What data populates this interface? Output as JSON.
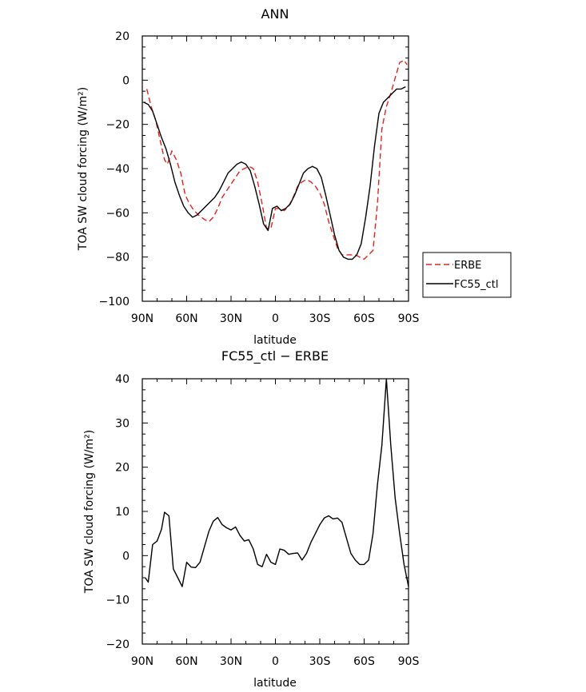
{
  "chart_data": [
    {
      "type": "line",
      "title": "ANN",
      "xlabel": "latitude",
      "ylabel": "TOA SW cloud forcing (W/m²)",
      "xticks": [
        "90N",
        "60N",
        "30N",
        "0",
        "30S",
        "60S",
        "90S"
      ],
      "xlim": [
        90,
        -90
      ],
      "ylim": [
        -100,
        20
      ],
      "yticks": [
        "20",
        "0",
        "−20",
        "−40",
        "−60",
        "−80",
        "−100"
      ],
      "legend_position": "right",
      "series": [
        {
          "name": "ERBE",
          "color": "#e8201c",
          "style": "dashed",
          "points": [
            [
              87,
              -4
            ],
            [
              84,
              -12
            ],
            [
              81,
              -18
            ],
            [
              78,
              -27
            ],
            [
              75,
              -36
            ],
            [
              73,
              -38
            ],
            [
              70,
              -32
            ],
            [
              67,
              -36
            ],
            [
              64,
              -42
            ],
            [
              61,
              -52
            ],
            [
              58,
              -56
            ],
            [
              55,
              -59
            ],
            [
              52,
              -61
            ],
            [
              48,
              -63
            ],
            [
              45,
              -64
            ],
            [
              42,
              -62
            ],
            [
              39,
              -58
            ],
            [
              36,
              -53
            ],
            [
              33,
              -50
            ],
            [
              30,
              -47
            ],
            [
              27,
              -44
            ],
            [
              24,
              -41
            ],
            [
              21,
              -40
            ],
            [
              18,
              -39
            ],
            [
              15,
              -40
            ],
            [
              12,
              -46
            ],
            [
              9,
              -56
            ],
            [
              6,
              -67
            ],
            [
              3,
              -67
            ],
            [
              0,
              -58
            ],
            [
              -3,
              -58
            ],
            [
              -6,
              -59
            ],
            [
              -9,
              -57
            ],
            [
              -12,
              -53
            ],
            [
              -15,
              -48
            ],
            [
              -18,
              -46
            ],
            [
              -21,
              -45
            ],
            [
              -24,
              -46
            ],
            [
              -27,
              -48
            ],
            [
              -30,
              -51
            ],
            [
              -33,
              -56
            ],
            [
              -36,
              -64
            ],
            [
              -39,
              -70
            ],
            [
              -42,
              -76
            ],
            [
              -45,
              -79
            ],
            [
              -48,
              -79
            ],
            [
              -51,
              -79
            ],
            [
              -54,
              -79
            ],
            [
              -57,
              -80
            ],
            [
              -60,
              -81
            ],
            [
              -63,
              -79
            ],
            [
              -66,
              -77
            ],
            [
              -69,
              -56
            ],
            [
              -72,
              -22
            ],
            [
              -75,
              -12
            ],
            [
              -78,
              -6
            ],
            [
              -81,
              1
            ],
            [
              -84,
              8
            ],
            [
              -87,
              9
            ],
            [
              -89,
              7
            ]
          ]
        },
        {
          "name": "FC55_ctl",
          "color": "#000000",
          "style": "solid",
          "points": [
            [
              89,
              -10
            ],
            [
              86,
              -11
            ],
            [
              83,
              -14
            ],
            [
              80,
              -20
            ],
            [
              77,
              -26
            ],
            [
              74,
              -31
            ],
            [
              71,
              -38
            ],
            [
              68,
              -46
            ],
            [
              65,
              -52
            ],
            [
              62,
              -57
            ],
            [
              59,
              -60
            ],
            [
              56,
              -62
            ],
            [
              53,
              -61
            ],
            [
              50,
              -59
            ],
            [
              47,
              -57
            ],
            [
              44,
              -55
            ],
            [
              41,
              -53
            ],
            [
              38,
              -50
            ],
            [
              35,
              -46
            ],
            [
              32,
              -42
            ],
            [
              29,
              -40
            ],
            [
              26,
              -38
            ],
            [
              23,
              -37
            ],
            [
              20,
              -38
            ],
            [
              17,
              -41
            ],
            [
              14,
              -48
            ],
            [
              11,
              -56
            ],
            [
              8,
              -65
            ],
            [
              5,
              -68
            ],
            [
              2,
              -58
            ],
            [
              -1,
              -57
            ],
            [
              -4,
              -59
            ],
            [
              -7,
              -58
            ],
            [
              -10,
              -56
            ],
            [
              -13,
              -52
            ],
            [
              -16,
              -47
            ],
            [
              -19,
              -42
            ],
            [
              -22,
              -40
            ],
            [
              -25,
              -39
            ],
            [
              -28,
              -40
            ],
            [
              -31,
              -44
            ],
            [
              -34,
              -52
            ],
            [
              -37,
              -61
            ],
            [
              -40,
              -70
            ],
            [
              -43,
              -77
            ],
            [
              -46,
              -80
            ],
            [
              -49,
              -81
            ],
            [
              -52,
              -81
            ],
            [
              -55,
              -79
            ],
            [
              -58,
              -74
            ],
            [
              -61,
              -62
            ],
            [
              -64,
              -48
            ],
            [
              -67,
              -30
            ],
            [
              -70,
              -15
            ],
            [
              -73,
              -10
            ],
            [
              -76,
              -8
            ],
            [
              -79,
              -6
            ],
            [
              -82,
              -4
            ],
            [
              -85,
              -4
            ],
            [
              -88,
              -3
            ]
          ]
        }
      ]
    },
    {
      "type": "line",
      "title": "FC55_ctl − ERBE",
      "xlabel": "latitude",
      "ylabel": "TOA SW cloud forcing (W/m²)",
      "xticks": [
        "90N",
        "60N",
        "30N",
        "0",
        "30S",
        "60S",
        "90S"
      ],
      "xlim": [
        90,
        -90
      ],
      "ylim": [
        -20,
        40
      ],
      "yticks": [
        "40",
        "30",
        "20",
        "10",
        "0",
        "−10",
        "−20"
      ],
      "series": [
        {
          "color": "#000000",
          "style": "solid",
          "points": [
            [
              88,
              -5
            ],
            [
              86,
              -6
            ],
            [
              83,
              2.5
            ],
            [
              80,
              3.3
            ],
            [
              77,
              6
            ],
            [
              75,
              9.8
            ],
            [
              72,
              9
            ],
            [
              69,
              -3
            ],
            [
              66,
              -5
            ],
            [
              63,
              -7
            ],
            [
              60,
              -1.5
            ],
            [
              57,
              -2.6
            ],
            [
              54,
              -2.7
            ],
            [
              51,
              -1.5
            ],
            [
              48,
              2
            ],
            [
              45,
              5.5
            ],
            [
              42,
              7.8
            ],
            [
              39,
              8.6
            ],
            [
              36,
              7
            ],
            [
              33,
              6.3
            ],
            [
              30,
              5.8
            ],
            [
              27,
              6.5
            ],
            [
              24,
              4.6
            ],
            [
              21,
              3.3
            ],
            [
              18,
              3.6
            ],
            [
              15,
              1.5
            ],
            [
              12,
              -2
            ],
            [
              9,
              -2.5
            ],
            [
              6,
              0.3
            ],
            [
              3,
              -1.5
            ],
            [
              0,
              -2
            ],
            [
              -3,
              1.5
            ],
            [
              -6,
              1.2
            ],
            [
              -9,
              0.3
            ],
            [
              -12,
              0.5
            ],
            [
              -15,
              0.6
            ],
            [
              -18,
              -1
            ],
            [
              -21,
              0.5
            ],
            [
              -24,
              3
            ],
            [
              -27,
              5
            ],
            [
              -30,
              7
            ],
            [
              -33,
              8.5
            ],
            [
              -36,
              9
            ],
            [
              -39,
              8.3
            ],
            [
              -42,
              8.5
            ],
            [
              -45,
              7.5
            ],
            [
              -48,
              4
            ],
            [
              -51,
              0.5
            ],
            [
              -54,
              -1
            ],
            [
              -57,
              -2
            ],
            [
              -60,
              -2
            ],
            [
              -63,
              -1
            ],
            [
              -66,
              5
            ],
            [
              -69,
              16
            ],
            [
              -72,
              25
            ],
            [
              -75,
              40
            ],
            [
              -78,
              25
            ],
            [
              -81,
              13
            ],
            [
              -84,
              5
            ],
            [
              -87,
              -2
            ],
            [
              -90,
              -7
            ]
          ]
        }
      ]
    }
  ]
}
